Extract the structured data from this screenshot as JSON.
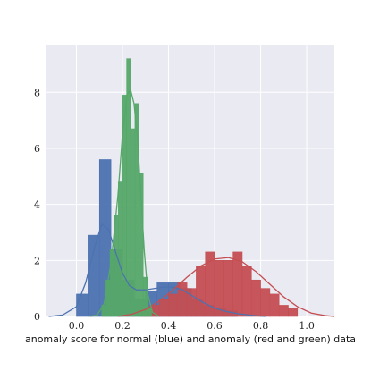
{
  "chart_data": {
    "type": "histogram",
    "title": "",
    "xlabel": "anomaly score for normal (blue) and anomaly (red and green) data",
    "ylabel": "",
    "xlim": [
      -0.13,
      1.12
    ],
    "ylim": [
      0,
      9.7
    ],
    "xticks": [
      0.0,
      0.2,
      0.4,
      0.6,
      0.8,
      1.0
    ],
    "xtick_labels": [
      "0.0",
      "0.2",
      "0.4",
      "0.6",
      "0.8",
      "1.0"
    ],
    "yticks": [
      0,
      2,
      4,
      6,
      8
    ],
    "ytick_labels": [
      "0",
      "2",
      "4",
      "6",
      "8"
    ],
    "grid": true,
    "background": "#EAEAF2",
    "series": [
      {
        "color": "#4C72B0",
        "bars": [
          {
            "x0": 0.0,
            "x1": 0.05,
            "h": 0.8
          },
          {
            "x0": 0.05,
            "x1": 0.1,
            "h": 2.9
          },
          {
            "x0": 0.1,
            "x1": 0.15,
            "h": 5.6
          },
          {
            "x0": 0.15,
            "x1": 0.2,
            "h": 2.4
          },
          {
            "x0": 0.2,
            "x1": 0.25,
            "h": 1.3
          },
          {
            "x0": 0.25,
            "x1": 0.3,
            "h": 0.6
          },
          {
            "x0": 0.3,
            "x1": 0.35,
            "h": 0.9
          },
          {
            "x0": 0.35,
            "x1": 0.4,
            "h": 1.2
          },
          {
            "x0": 0.4,
            "x1": 0.45,
            "h": 1.2
          },
          {
            "x0": 0.45,
            "x1": 0.5,
            "h": 1.0
          },
          {
            "x0": 0.5,
            "x1": 0.55,
            "h": 0.6
          },
          {
            "x0": 0.55,
            "x1": 0.6,
            "h": 0.4
          },
          {
            "x0": 0.6,
            "x1": 0.65,
            "h": 0.3
          },
          {
            "x0": 0.65,
            "x1": 0.7,
            "h": 0.2
          }
        ],
        "kde": {
          "x": [
            -0.12,
            -0.06,
            0.0,
            0.04,
            0.08,
            0.11,
            0.14,
            0.17,
            0.2,
            0.23,
            0.26,
            0.3,
            0.34,
            0.38,
            0.42,
            0.46,
            0.5,
            0.55,
            0.6,
            0.65,
            0.7,
            0.76,
            0.82
          ],
          "y": [
            0.0,
            0.05,
            0.35,
            1.2,
            2.5,
            3.3,
            3.1,
            2.3,
            1.55,
            1.1,
            0.95,
            0.95,
            1.0,
            1.05,
            1.05,
            0.95,
            0.75,
            0.5,
            0.3,
            0.18,
            0.1,
            0.04,
            0.0
          ]
        }
      },
      {
        "color": "#C44E52",
        "bars": [
          {
            "x0": 0.28,
            "x1": 0.32,
            "h": 0.3
          },
          {
            "x0": 0.32,
            "x1": 0.36,
            "h": 0.4
          },
          {
            "x0": 0.36,
            "x1": 0.4,
            "h": 0.6
          },
          {
            "x0": 0.4,
            "x1": 0.44,
            "h": 0.8
          },
          {
            "x0": 0.44,
            "x1": 0.48,
            "h": 1.2
          },
          {
            "x0": 0.48,
            "x1": 0.52,
            "h": 1.0
          },
          {
            "x0": 0.52,
            "x1": 0.56,
            "h": 1.8
          },
          {
            "x0": 0.56,
            "x1": 0.6,
            "h": 2.3
          },
          {
            "x0": 0.6,
            "x1": 0.64,
            "h": 2.0
          },
          {
            "x0": 0.64,
            "x1": 0.68,
            "h": 2.0
          },
          {
            "x0": 0.68,
            "x1": 0.72,
            "h": 2.3
          },
          {
            "x0": 0.72,
            "x1": 0.76,
            "h": 1.8
          },
          {
            "x0": 0.76,
            "x1": 0.8,
            "h": 1.3
          },
          {
            "x0": 0.8,
            "x1": 0.84,
            "h": 1.0
          },
          {
            "x0": 0.84,
            "x1": 0.88,
            "h": 0.8
          },
          {
            "x0": 0.88,
            "x1": 0.92,
            "h": 0.4
          },
          {
            "x0": 0.92,
            "x1": 0.96,
            "h": 0.3
          }
        ],
        "kde": {
          "x": [
            0.18,
            0.24,
            0.3,
            0.36,
            0.42,
            0.48,
            0.54,
            0.6,
            0.66,
            0.72,
            0.78,
            0.84,
            0.9,
            0.96,
            1.02,
            1.08,
            1.12
          ],
          "y": [
            0.0,
            0.08,
            0.25,
            0.55,
            0.95,
            1.4,
            1.8,
            2.05,
            2.1,
            1.95,
            1.6,
            1.15,
            0.7,
            0.35,
            0.12,
            0.03,
            0.0
          ]
        }
      },
      {
        "color": "#55A868",
        "bars": [
          {
            "x0": 0.11,
            "x1": 0.128,
            "h": 0.4
          },
          {
            "x0": 0.128,
            "x1": 0.146,
            "h": 1.3
          },
          {
            "x0": 0.146,
            "x1": 0.164,
            "h": 2.4
          },
          {
            "x0": 0.164,
            "x1": 0.182,
            "h": 3.6
          },
          {
            "x0": 0.182,
            "x1": 0.2,
            "h": 4.8
          },
          {
            "x0": 0.2,
            "x1": 0.218,
            "h": 7.9
          },
          {
            "x0": 0.218,
            "x1": 0.236,
            "h": 9.2
          },
          {
            "x0": 0.236,
            "x1": 0.254,
            "h": 6.7
          },
          {
            "x0": 0.254,
            "x1": 0.272,
            "h": 7.6
          },
          {
            "x0": 0.272,
            "x1": 0.29,
            "h": 5.1
          },
          {
            "x0": 0.29,
            "x1": 0.308,
            "h": 1.4
          },
          {
            "x0": 0.308,
            "x1": 0.326,
            "h": 0.3
          }
        ],
        "kde": {
          "x": [
            0.06,
            0.09,
            0.12,
            0.15,
            0.18,
            0.2,
            0.22,
            0.235,
            0.25,
            0.265,
            0.28,
            0.295,
            0.31,
            0.33,
            0.36
          ],
          "y": [
            0.0,
            0.05,
            0.45,
            1.9,
            4.3,
            6.5,
            7.9,
            8.1,
            7.6,
            6.4,
            4.3,
            2.3,
            0.8,
            0.15,
            0.0
          ]
        }
      }
    ]
  }
}
